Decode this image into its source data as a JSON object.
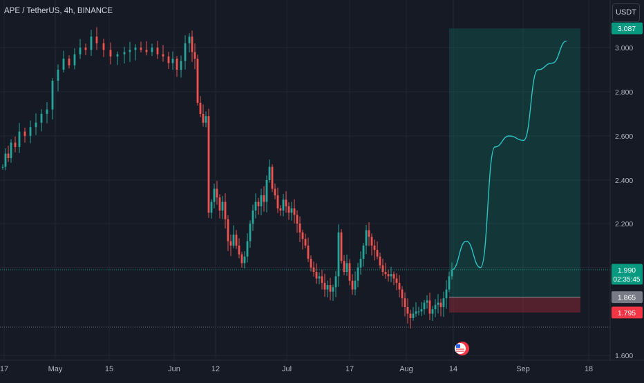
{
  "header": {
    "symbol_title": "APE / TetherUS, 4h, BINANCE",
    "currency_button": "USDT"
  },
  "chart_data": {
    "type": "candlestick",
    "symbol": "APE / TetherUS",
    "interval": "4h",
    "exchange": "BINANCE",
    "y_axis": {
      "range": [
        1.6,
        3.087
      ],
      "ticks": [
        "3.000",
        "2.800",
        "2.600",
        "2.400",
        "2.200",
        "1.600"
      ]
    },
    "x_axis": {
      "tick_labels": [
        "17",
        "May",
        "15",
        "Jun",
        "12",
        "Jul",
        "17",
        "Aug",
        "14",
        "Sep",
        "18"
      ]
    },
    "price_labels": {
      "target": {
        "value": "3.087",
        "color": "#089981"
      },
      "current": {
        "value": "1.990",
        "countdown": "02:35:45",
        "color": "#089981"
      },
      "entry": {
        "value": "1.865",
        "color": "#787b86"
      },
      "stop": {
        "value": "1.795",
        "color": "#f23645"
      }
    },
    "long_position": {
      "entry": 1.865,
      "target": 3.087,
      "stop": 1.795
    },
    "projection_path": [
      1.99,
      2.12,
      2.0,
      2.55,
      2.6,
      2.58,
      2.9,
      2.93,
      3.03
    ],
    "colors": {
      "up": "#26a69a",
      "down": "#ef5350",
      "projection": "#2ec4c6",
      "background": "#161a25"
    },
    "event_flag": "us-flag-icon"
  }
}
